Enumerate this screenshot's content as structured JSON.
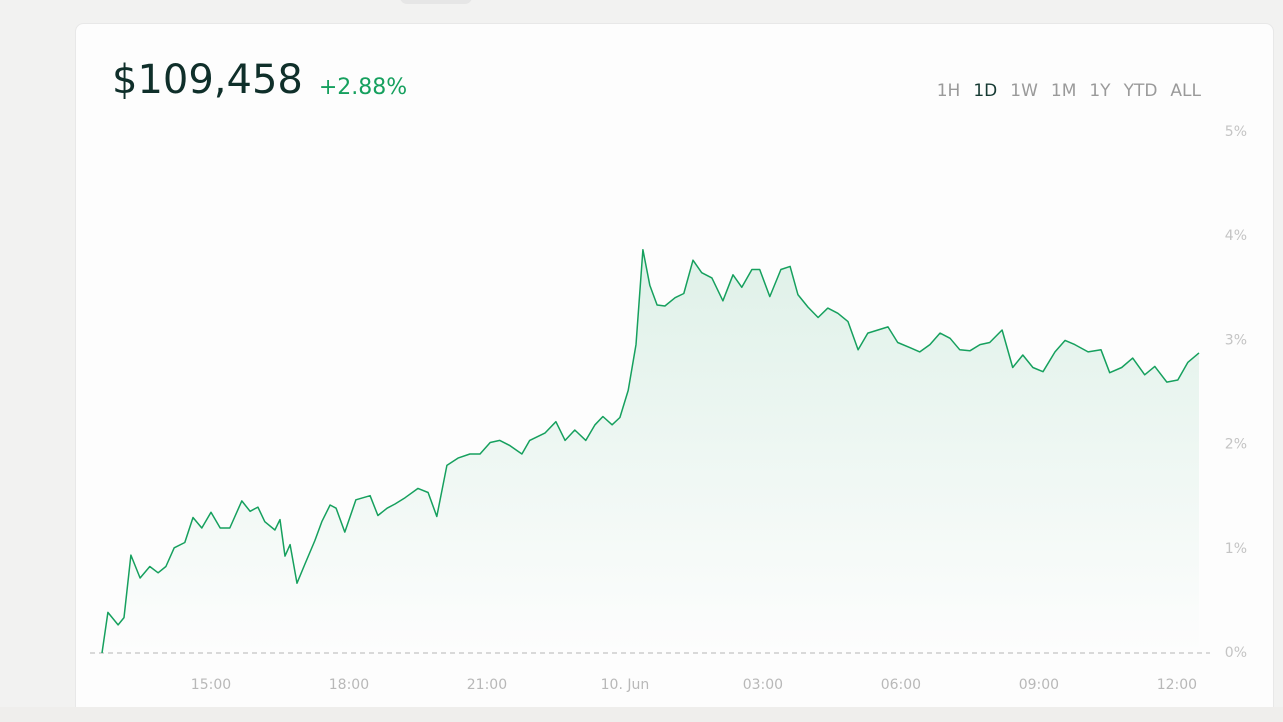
{
  "header": {
    "price": "$109,458",
    "change": "+2.88%"
  },
  "range_buttons": [
    "1H",
    "1D",
    "1W",
    "1M",
    "1Y",
    "YTD",
    "ALL"
  ],
  "selected_range": 1,
  "chart_data": {
    "type": "line",
    "color": "#16a05e",
    "zero_line": true,
    "area": true,
    "x": [
      12.63,
      12.76,
      12.98,
      13.11,
      13.26,
      13.46,
      13.67,
      13.85,
      14.02,
      14.2,
      14.43,
      14.61,
      14.8,
      15.0,
      15.2,
      15.41,
      15.67,
      15.85,
      16.02,
      16.17,
      16.39,
      16.5,
      16.61,
      16.72,
      16.87,
      17.04,
      17.26,
      17.41,
      17.59,
      17.72,
      17.91,
      18.15,
      18.46,
      18.63,
      18.83,
      19.0,
      19.22,
      19.5,
      19.72,
      19.91,
      20.13,
      20.37,
      20.63,
      20.85,
      21.07,
      21.28,
      21.5,
      21.76,
      21.93,
      22.26,
      22.5,
      22.7,
      22.91,
      23.15,
      23.35,
      23.52,
      23.72,
      23.89,
      24.07,
      24.24,
      24.39,
      24.54,
      24.7,
      24.87,
      25.09,
      25.28,
      25.48,
      25.67,
      25.89,
      26.13,
      26.35,
      26.54,
      26.76,
      26.93,
      27.15,
      27.39,
      27.59,
      27.76,
      27.98,
      28.2,
      28.41,
      28.63,
      28.85,
      29.07,
      29.28,
      29.5,
      29.72,
      29.93,
      30.2,
      30.41,
      30.63,
      30.85,
      31.07,
      31.28,
      31.5,
      31.72,
      31.93,
      32.2,
      32.43,
      32.65,
      32.87,
      33.09,
      33.35,
      33.57,
      33.78,
      34.07,
      34.35,
      34.54,
      34.8,
      35.04,
      35.3,
      35.52,
      35.78,
      36.02,
      36.24,
      36.48
    ],
    "values": [
      0,
      0.39,
      0.27,
      0.34,
      0.94,
      0.72,
      0.83,
      0.77,
      0.83,
      1.01,
      1.06,
      1.3,
      1.2,
      1.35,
      1.2,
      1.2,
      1.46,
      1.36,
      1.4,
      1.26,
      1.18,
      1.28,
      0.93,
      1.04,
      0.67,
      0.85,
      1.08,
      1.26,
      1.42,
      1.39,
      1.16,
      1.47,
      1.51,
      1.32,
      1.39,
      1.43,
      1.49,
      1.58,
      1.54,
      1.31,
      1.8,
      1.87,
      1.91,
      1.91,
      2.02,
      2.04,
      1.99,
      1.91,
      2.04,
      2.11,
      2.22,
      2.04,
      2.14,
      2.04,
      2.19,
      2.27,
      2.19,
      2.26,
      2.52,
      2.96,
      3.87,
      3.53,
      3.34,
      3.33,
      3.41,
      3.45,
      3.77,
      3.65,
      3.6,
      3.38,
      3.63,
      3.51,
      3.68,
      3.68,
      3.42,
      3.68,
      3.71,
      3.44,
      3.32,
      3.22,
      3.31,
      3.26,
      3.18,
      2.91,
      3.07,
      3.1,
      3.13,
      2.98,
      2.93,
      2.89,
      2.96,
      3.07,
      3.02,
      2.91,
      2.9,
      2.96,
      2.98,
      3.1,
      2.74,
      2.86,
      2.74,
      2.7,
      2.89,
      3.0,
      2.96,
      2.89,
      2.91,
      2.69,
      2.74,
      2.83,
      2.67,
      2.75,
      2.6,
      2.62,
      2.79,
      2.88
    ],
    "xlim": [
      12.37,
      36.72
    ],
    "xticks": [
      {
        "value": 15,
        "label": "15:00"
      },
      {
        "value": 18,
        "label": "18:00"
      },
      {
        "value": 21,
        "label": "21:00"
      },
      {
        "value": 24,
        "label": "10. Jun"
      },
      {
        "value": 27,
        "label": "03:00"
      },
      {
        "value": 30,
        "label": "06:00"
      },
      {
        "value": 33,
        "label": "09:00"
      },
      {
        "value": 36,
        "label": "12:00"
      }
    ],
    "ylim": [
      0,
      5
    ],
    "yticks": [
      {
        "value": 0,
        "label": "0%"
      },
      {
        "value": 1,
        "label": "1%"
      },
      {
        "value": 2,
        "label": "2%"
      },
      {
        "value": 3,
        "label": "3%"
      },
      {
        "value": 4,
        "label": "4%"
      },
      {
        "value": 5,
        "label": "5%"
      }
    ]
  }
}
